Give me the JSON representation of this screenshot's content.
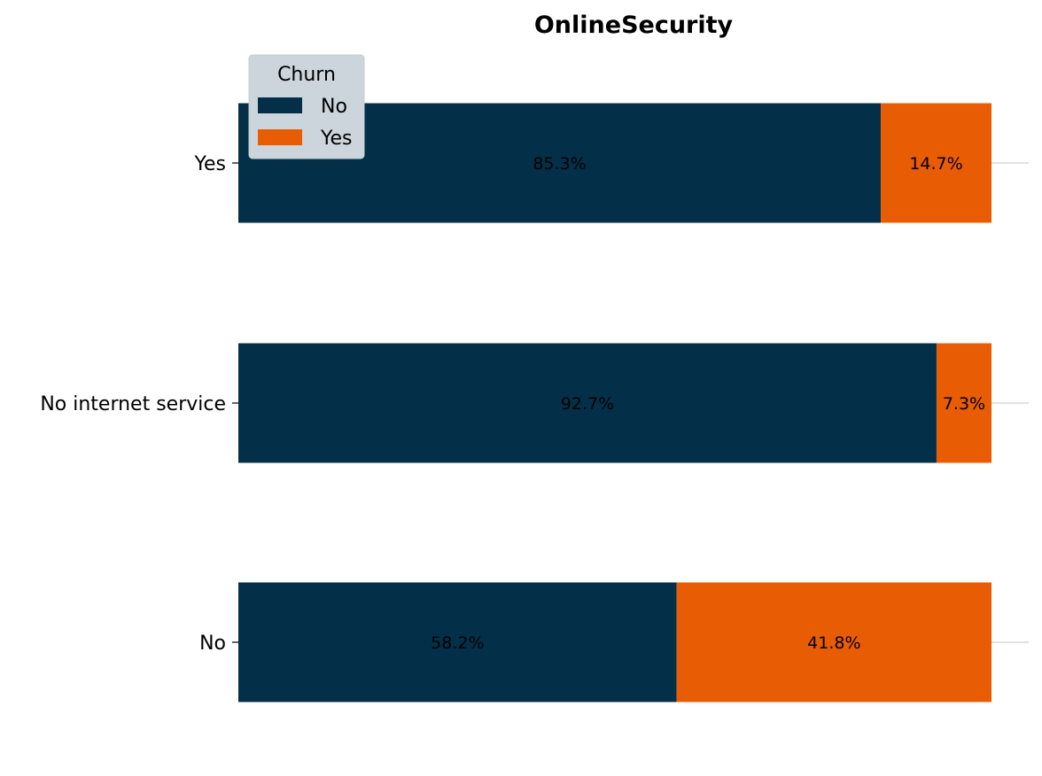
{
  "chart_data": {
    "type": "bar",
    "orientation": "horizontal",
    "stacked": true,
    "title": "OnlineSecurity",
    "xlabel": "",
    "ylabel": "",
    "xlim": [
      0,
      100
    ],
    "categories": [
      "No",
      "No internet service",
      "Yes"
    ],
    "series": [
      {
        "name": "No",
        "color": "#033048",
        "values": [
          58.2,
          92.7,
          85.3
        ],
        "labels": [
          "58.2%",
          "92.7%",
          "85.3%"
        ]
      },
      {
        "name": "Yes",
        "color": "#E85C04",
        "values": [
          41.8,
          7.3,
          14.7
        ],
        "labels": [
          "41.8%",
          "7.3%",
          "14.7%"
        ]
      }
    ],
    "legend": {
      "title": "Churn",
      "placement": "top-left",
      "entries": [
        "No",
        "Yes"
      ]
    },
    "grid": false
  }
}
